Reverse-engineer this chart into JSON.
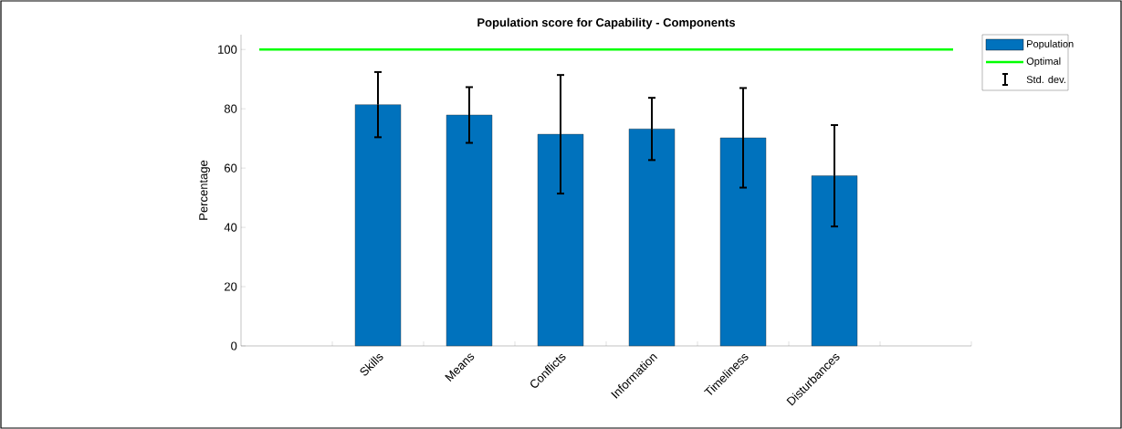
{
  "chart_data": {
    "type": "bar",
    "title": "Population score for Capability - Components",
    "ylabel": "Percentage",
    "categories": [
      "Skills",
      "Means",
      "Conflicts",
      "Information",
      "Timeliness",
      "Disturbances"
    ],
    "series": [
      {
        "name": "Population",
        "color": "#0072bd",
        "values": [
          81.4,
          77.9,
          71.4,
          73.2,
          70.2,
          57.4
        ],
        "errors": [
          11.0,
          9.4,
          20.0,
          10.5,
          16.8,
          17.1
        ]
      }
    ],
    "ref_lines": [
      {
        "axis": "y",
        "value": 100,
        "label": "Optimal",
        "color": "#00ff00"
      }
    ],
    "annotations": [
      "Std. dev."
    ],
    "ylim": [
      0,
      105
    ],
    "yticks": [
      0,
      20,
      40,
      60,
      80,
      100
    ],
    "grid": false,
    "legend": "top right"
  }
}
